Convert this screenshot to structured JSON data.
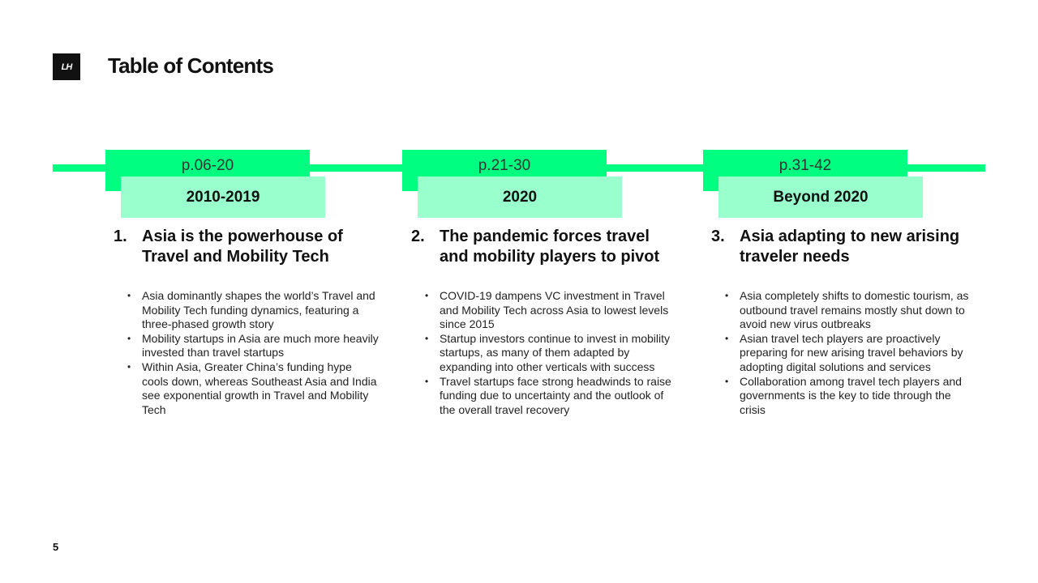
{
  "header": {
    "logo_text": "LH",
    "title": "Table of Contents"
  },
  "colors": {
    "accent": "#00ff80",
    "accent_light": "#99ffcc",
    "logo_bg": "#111111"
  },
  "sections": [
    {
      "pages": "p.06-20",
      "period": "2010-2019",
      "number": "1.",
      "title": "Asia is the powerhouse of Travel and Mobility Tech",
      "bullets": [
        "Asia dominantly shapes the world’s Travel and Mobility Tech funding dynamics, featuring a three-phased growth story",
        "Mobility startups in Asia are much more heavily invested than travel startups",
        "Within Asia, Greater China’s funding hype cools down, whereas Southeast Asia and India see exponential growth in Travel and Mobility Tech"
      ]
    },
    {
      "pages": "p.21-30",
      "period": "2020",
      "number": "2.",
      "title": "The pandemic forces travel and mobility players to pivot",
      "bullets": [
        "COVID-19 dampens VC investment in Travel and Mobility Tech across Asia to lowest levels since 2015",
        "Startup investors continue to invest in mobility startups, as many of them adapted by expanding into other verticals with success",
        "Travel startups face strong headwinds to raise funding due to uncertainty and the outlook of the overall travel recovery"
      ]
    },
    {
      "pages": "p.31-42",
      "period": "Beyond 2020",
      "number": "3.",
      "title": "Asia adapting to new arising traveler needs",
      "bullets": [
        "Asia completely shifts to domestic tourism, as outbound travel remains mostly shut down to avoid new virus outbreaks",
        "Asian travel tech players are proactively preparing for new arising travel behaviors by adopting digital solutions and services",
        "Collaboration among travel tech players and governments is the key to tide through the crisis"
      ]
    }
  ],
  "footer": {
    "page_number": "5"
  }
}
